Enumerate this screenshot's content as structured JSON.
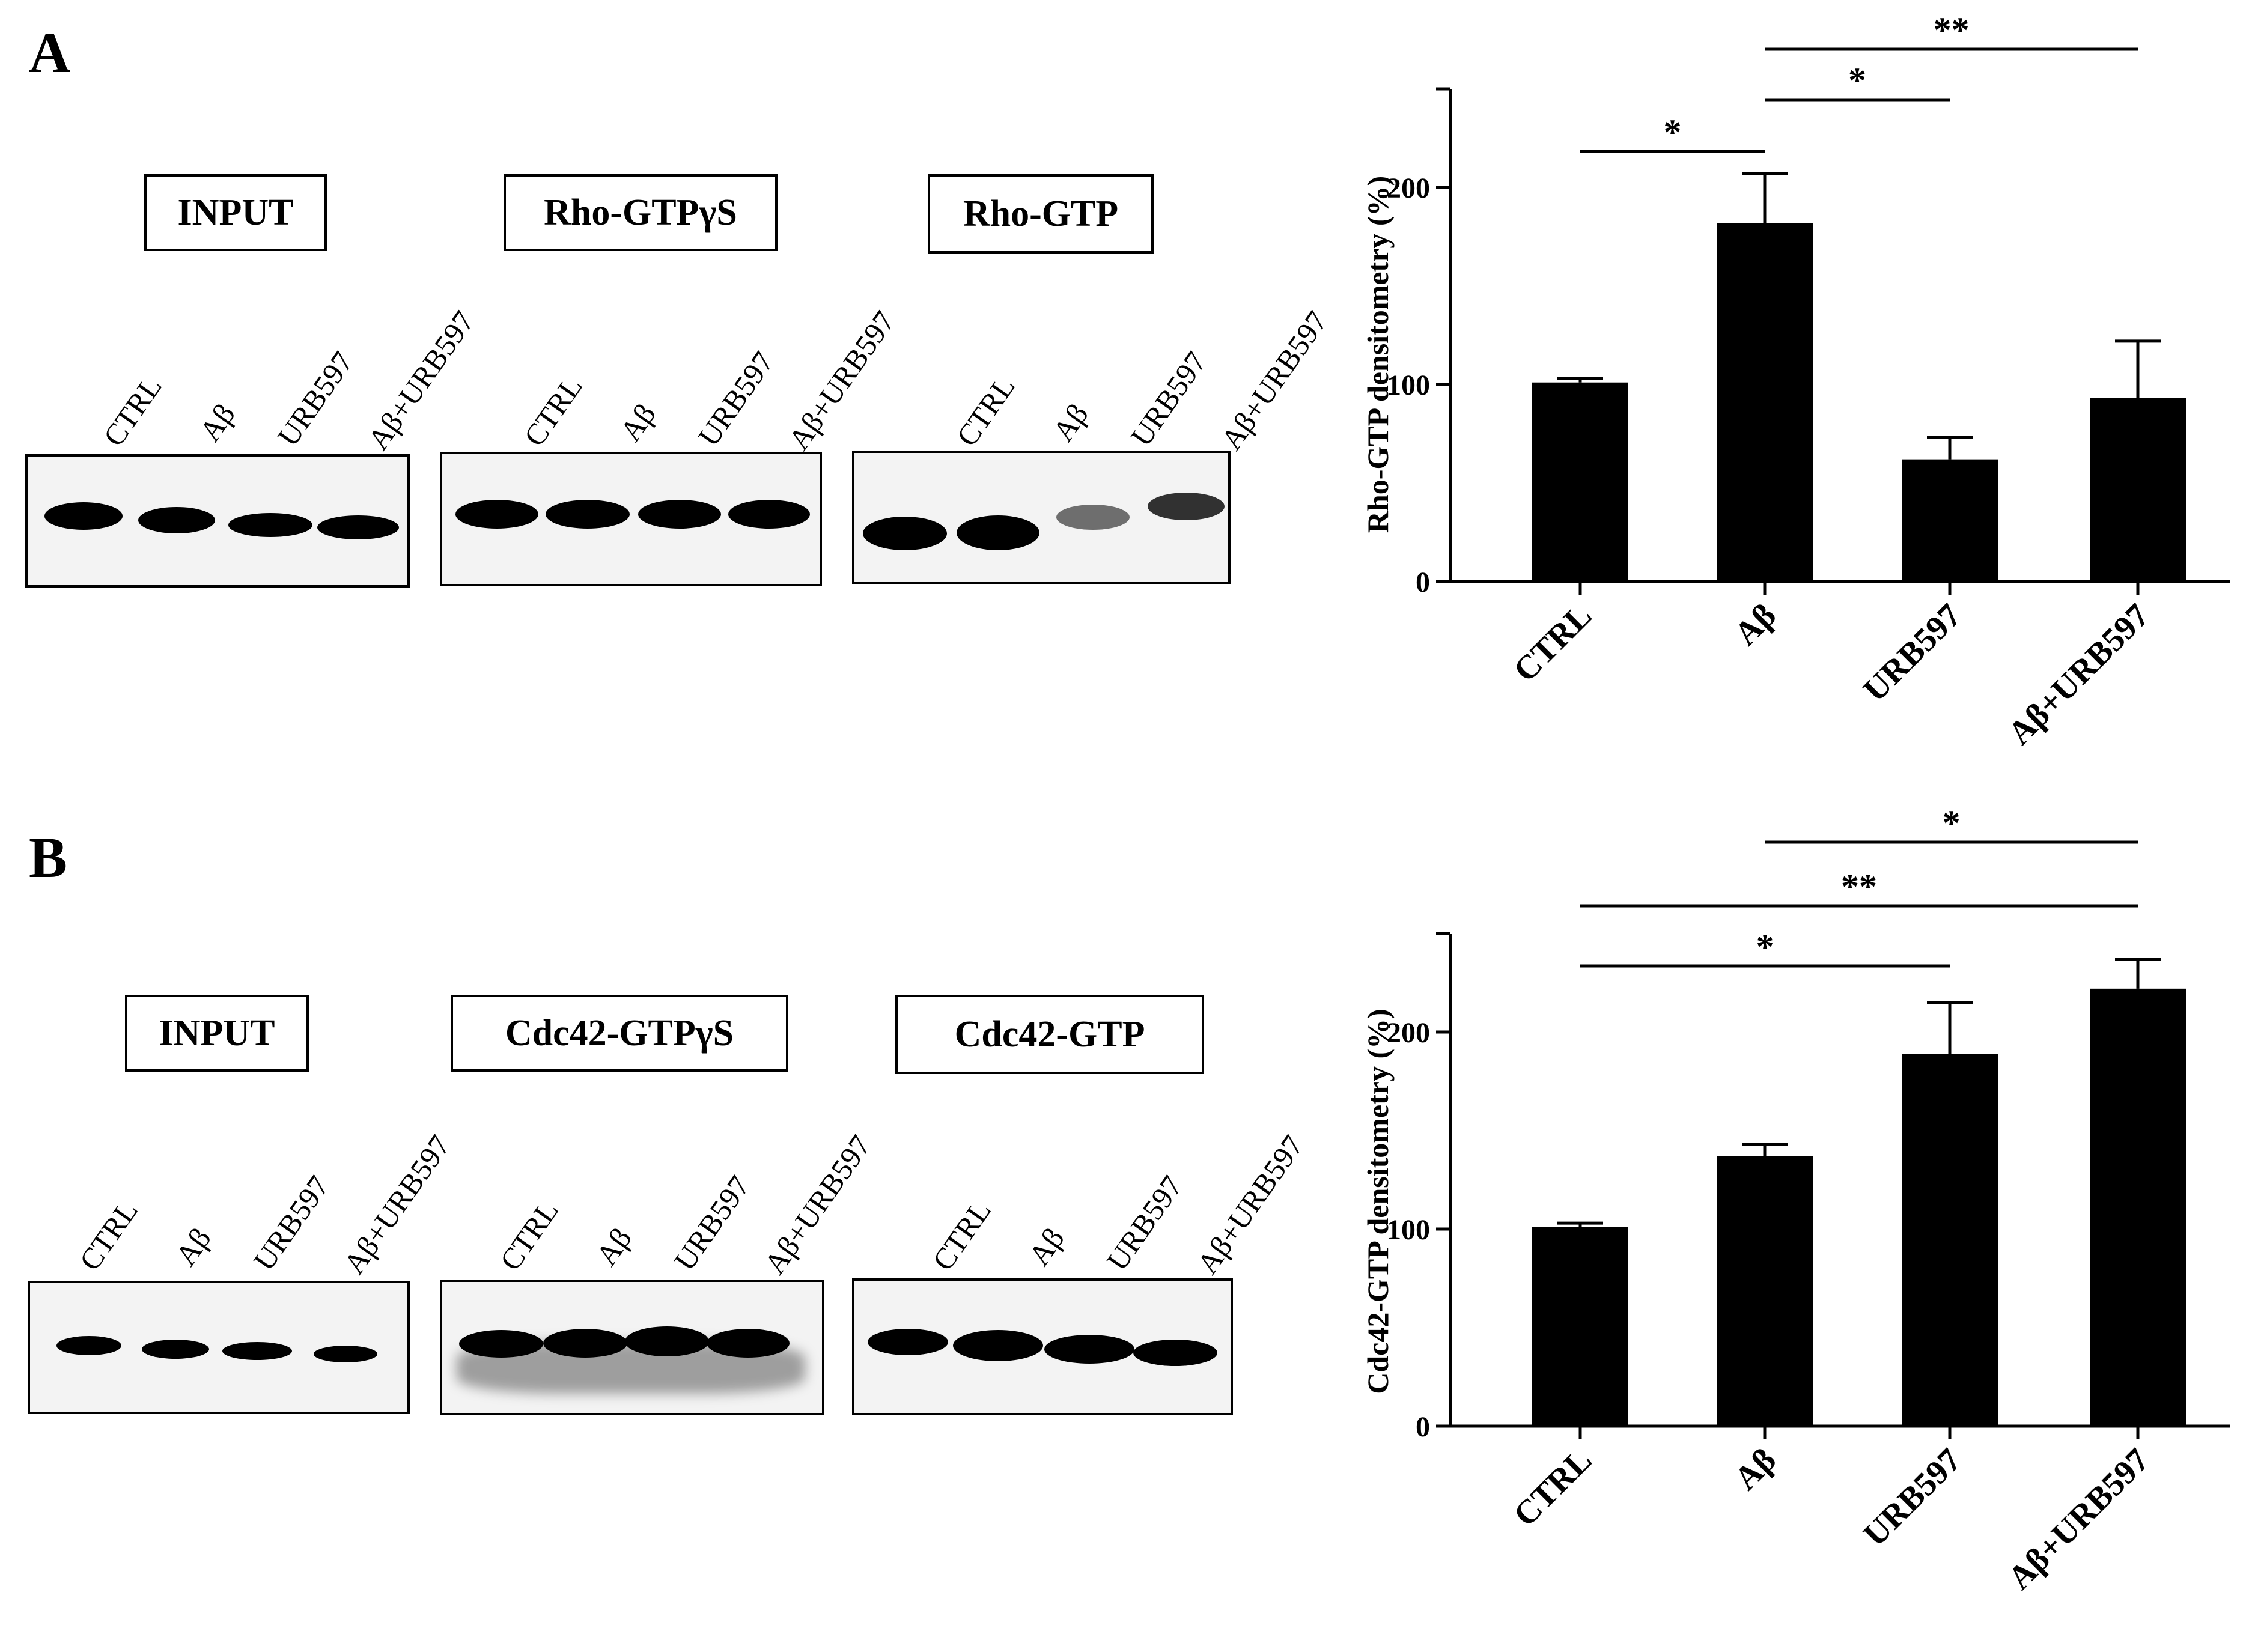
{
  "panels": [
    {
      "letter": "A",
      "blots": [
        {
          "title": "INPUT",
          "lanes": [
            "CTRL",
            "Aβ",
            "URB597",
            "Aβ+URB597"
          ]
        },
        {
          "title": "Rho-GTPγS",
          "lanes": [
            "CTRL",
            "Aβ",
            "URB597",
            "Aβ+URB597"
          ]
        },
        {
          "title": "Rho-GTP",
          "lanes": [
            "CTRL",
            "Aβ",
            "URB597",
            "Aβ+URB597"
          ]
        }
      ]
    },
    {
      "letter": "B",
      "blots": [
        {
          "title": "INPUT",
          "lanes": [
            "CTRL",
            "Aβ",
            "URB597",
            "Aβ+URB597"
          ]
        },
        {
          "title": "Cdc42-GTPγS",
          "lanes": [
            "CTRL",
            "Aβ",
            "URB597",
            "Aβ+URB597"
          ]
        },
        {
          "title": "Cdc42-GTP",
          "lanes": [
            "CTRL",
            "Aβ",
            "URB597",
            "Aβ+URB597"
          ]
        }
      ]
    }
  ],
  "chart_data": [
    {
      "type": "bar",
      "panel": "A",
      "categories": [
        "CTRL",
        "Aβ",
        "URB597",
        "Aβ+URB597"
      ],
      "values": [
        101,
        182,
        62,
        93
      ],
      "errors": [
        2,
        25,
        11,
        29
      ],
      "ylabel": "Rho-GTP densitometry (%)",
      "ylim": [
        0,
        250
      ],
      "yticks": [
        0,
        100,
        200
      ],
      "bar_color": "#000000",
      "significance": [
        {
          "from": "CTRL",
          "to": "Aβ",
          "label": "*"
        },
        {
          "from": "Aβ",
          "to": "URB597",
          "label": "*"
        },
        {
          "from": "Aβ",
          "to": "Aβ+URB597",
          "label": "**"
        }
      ]
    },
    {
      "type": "bar",
      "panel": "B",
      "categories": [
        "CTRL",
        "Aβ",
        "URB597",
        "Aβ+URB597"
      ],
      "values": [
        101,
        137,
        189,
        222
      ],
      "errors": [
        2,
        6,
        26,
        15
      ],
      "ylabel": "Cdc42-GTP densitometry (%)",
      "ylim": [
        0,
        250
      ],
      "yticks": [
        0,
        100,
        200
      ],
      "bar_color": "#000000",
      "significance": [
        {
          "from": "CTRL",
          "to": "URB597",
          "label": "*"
        },
        {
          "from": "CTRL",
          "to": "Aβ+URB597",
          "label": "**"
        },
        {
          "from": "Aβ",
          "to": "Aβ+URB597",
          "label": "*"
        }
      ]
    }
  ]
}
